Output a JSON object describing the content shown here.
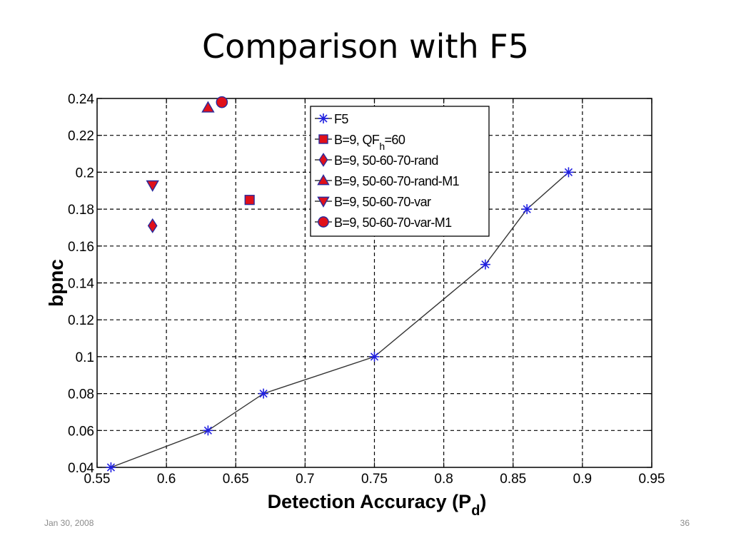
{
  "slide": {
    "title": "Comparison with F5",
    "footer_date": "Jan 30, 2008",
    "page_number": "36"
  },
  "chart_data": {
    "type": "scatter",
    "title": "",
    "xlabel": "Detection Accuracy (P",
    "xlabel_sub": "d",
    "xlabel_close": ")",
    "ylabel": "bpnc",
    "xlim": [
      0.55,
      0.95
    ],
    "ylim": [
      0.04,
      0.24
    ],
    "xticks": [
      0.55,
      0.6,
      0.65,
      0.7,
      0.75,
      0.8,
      0.85,
      0.9,
      0.95
    ],
    "xtick_labels": [
      "0.55",
      "0.6",
      "0.65",
      "0.7",
      "0.75",
      "0.8",
      "0.85",
      "0.9",
      "0.95"
    ],
    "yticks": [
      0.04,
      0.06,
      0.08,
      0.1,
      0.12,
      0.14,
      0.16,
      0.18,
      0.2,
      0.22,
      0.24
    ],
    "ytick_labels": [
      "0.04",
      "0.06",
      "0.08",
      "0.1",
      "0.12",
      "0.14",
      "0.16",
      "0.18",
      "0.2",
      "0.22",
      "0.24"
    ],
    "grid": true,
    "legend_position": "top-right",
    "series": [
      {
        "name": "F5",
        "marker": "asterisk",
        "line": true,
        "color": "#1f1fe0",
        "x": [
          0.56,
          0.63,
          0.67,
          0.75,
          0.83,
          0.86,
          0.89
        ],
        "y": [
          0.04,
          0.06,
          0.08,
          0.1,
          0.15,
          0.18,
          0.2
        ]
      },
      {
        "name": "B=9, QF",
        "name_sub": "h",
        "name_suffix": "=60",
        "marker": "square",
        "line": false,
        "color": "#e0101a",
        "x": [
          0.66
        ],
        "y": [
          0.185
        ]
      },
      {
        "name": "B=9, 50-60-70-rand",
        "marker": "diamond",
        "line": false,
        "color": "#e0101a",
        "x": [
          0.59
        ],
        "y": [
          0.171
        ]
      },
      {
        "name": "B=9, 50-60-70-rand-M1",
        "marker": "triangle-up",
        "line": false,
        "color": "#e0101a",
        "x": [
          0.63
        ],
        "y": [
          0.235
        ]
      },
      {
        "name": "B=9, 50-60-70-var",
        "marker": "triangle-down",
        "line": false,
        "color": "#e0101a",
        "x": [
          0.59
        ],
        "y": [
          0.193
        ]
      },
      {
        "name": "B=9, 50-60-70-var-M1",
        "marker": "circle",
        "line": false,
        "color": "#e0101a",
        "x": [
          0.64
        ],
        "y": [
          0.238
        ]
      }
    ]
  }
}
